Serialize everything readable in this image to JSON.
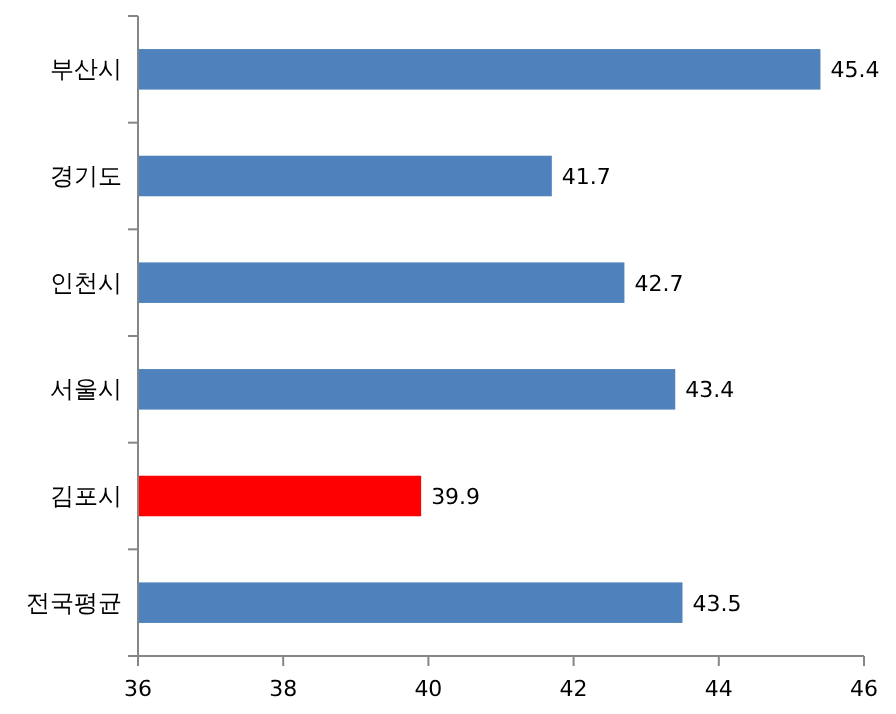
{
  "chart_data": {
    "type": "bar",
    "orientation": "horizontal",
    "categories": [
      "부산시",
      "경기도",
      "인천시",
      "서울시",
      "김포시",
      "전국평균"
    ],
    "values": [
      45.4,
      41.7,
      42.7,
      43.4,
      39.9,
      43.5
    ],
    "colors": [
      "#4f81bd",
      "#4f81bd",
      "#4f81bd",
      "#4f81bd",
      "#ff0000",
      "#4f81bd"
    ],
    "xlim": [
      36,
      46
    ],
    "xticks": [
      36,
      38,
      40,
      42,
      44,
      46
    ],
    "data_labels": true
  }
}
